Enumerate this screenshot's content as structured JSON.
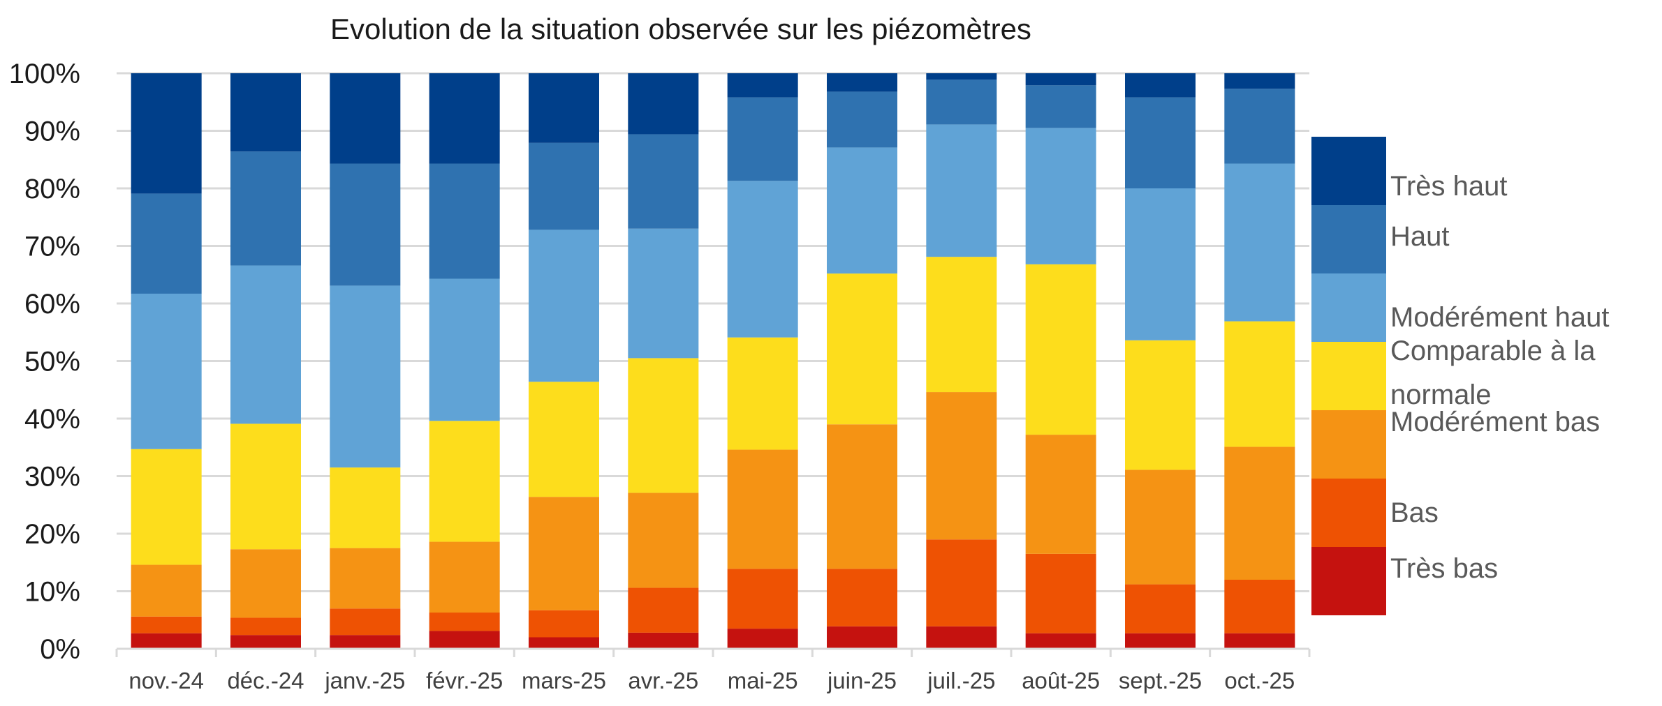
{
  "chart_data": {
    "type": "bar",
    "stacked": true,
    "percent": true,
    "title": "Evolution de la situation observée sur les  piézomètres",
    "xlabel": "",
    "ylabel": "",
    "ylim": [
      0,
      100
    ],
    "yticks": [
      "0%",
      "10%",
      "20%",
      "30%",
      "40%",
      "50%",
      "60%",
      "70%",
      "80%",
      "90%",
      "100%"
    ],
    "grid": true,
    "legend_position": "right",
    "categories": [
      "nov.-24",
      "déc.-24",
      "janv.-25",
      "févr.-25",
      "mars-25",
      "avr.-25",
      "mai-25",
      "juin-25",
      "juil.-25",
      "août-25",
      "sept.-25",
      "oct.-25"
    ],
    "series": [
      {
        "name": "Très bas",
        "color": "#C5120F",
        "values": [
          2.7,
          2.4,
          2.4,
          3.1,
          2.0,
          2.8,
          3.5,
          3.9,
          3.9,
          2.7,
          2.7,
          2.7
        ]
      },
      {
        "name": "Bas",
        "color": "#EE5203",
        "values": [
          2.9,
          3.0,
          4.6,
          3.2,
          4.7,
          7.8,
          10.4,
          10.0,
          15.1,
          13.8,
          8.5,
          9.3
        ]
      },
      {
        "name": "Modérément bas",
        "color": "#F59314",
        "values": [
          9.0,
          11.9,
          10.5,
          12.3,
          19.7,
          16.5,
          20.7,
          25.1,
          25.6,
          20.7,
          19.9,
          23.1
        ]
      },
      {
        "name": "Comparable à la normale",
        "legend_lines": [
          "Comparable à la",
          "normale"
        ],
        "color": "#FDDD1C",
        "values": [
          20.1,
          21.8,
          14.0,
          21.0,
          20.0,
          23.4,
          19.5,
          26.2,
          23.5,
          29.6,
          22.5,
          21.8
        ]
      },
      {
        "name": "Modérément haut",
        "color": "#60A3D6",
        "values": [
          27.0,
          27.5,
          31.6,
          24.7,
          26.4,
          22.5,
          27.2,
          21.9,
          23.0,
          23.7,
          26.4,
          27.4
        ]
      },
      {
        "name": "Haut",
        "color": "#2F72B0",
        "values": [
          17.4,
          19.8,
          21.2,
          20.0,
          15.1,
          16.4,
          14.5,
          9.7,
          7.8,
          7.4,
          15.8,
          13.0
        ]
      },
      {
        "name": "Très haut",
        "color": "#003F8A",
        "values": [
          20.9,
          13.6,
          15.7,
          15.7,
          12.1,
          10.6,
          4.2,
          3.2,
          1.1,
          2.1,
          4.2,
          2.7
        ]
      }
    ]
  }
}
